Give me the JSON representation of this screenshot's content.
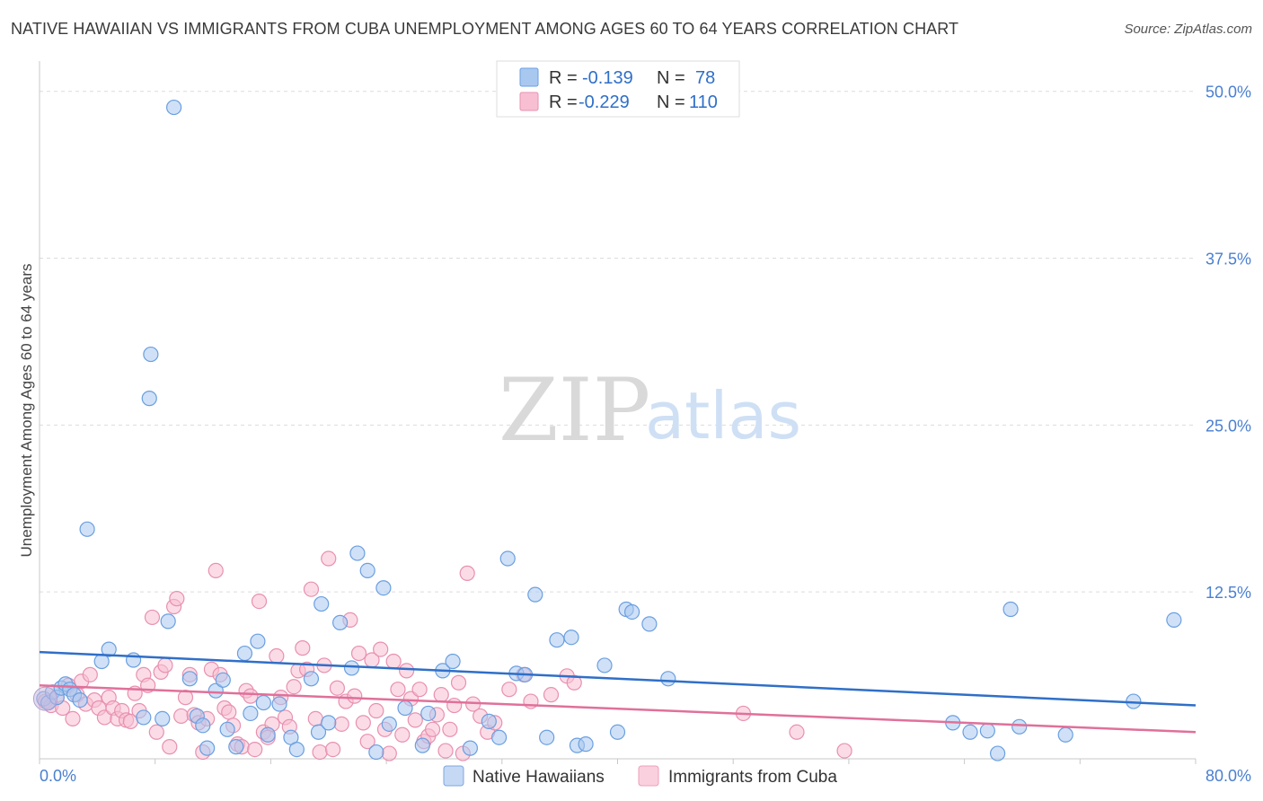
{
  "title": "NATIVE HAWAIIAN VS IMMIGRANTS FROM CUBA UNEMPLOYMENT AMONG AGES 60 TO 64 YEARS CORRELATION CHART",
  "source": "Source: ZipAtlas.com",
  "watermark": {
    "zip": "ZIP",
    "atlas": "atlas"
  },
  "legend": {
    "r_label": "R =",
    "n_label": "N =",
    "rows": [
      {
        "r": "-0.139",
        "n": "78",
        "color": "#a9c8f0",
        "stroke": "#6a9fe0"
      },
      {
        "r": "-0.229",
        "n": "110",
        "color": "#f8bfd2",
        "stroke": "#e890b0"
      }
    ]
  },
  "chart_data": {
    "type": "scatter",
    "title": "NATIVE HAWAIIAN VS IMMIGRANTS FROM CUBA UNEMPLOYMENT AMONG AGES 60 TO 64 YEARS CORRELATION CHART",
    "xlabel": "",
    "ylabel": "Unemployment Among Ages 60 to 64 years",
    "xlim": [
      0,
      80
    ],
    "ylim": [
      0,
      52
    ],
    "x_tick_labels": [
      "0.0%",
      "80.0%"
    ],
    "y_ticks": [
      12.5,
      25.0,
      37.5,
      50.0
    ],
    "y_tick_labels": [
      "12.5%",
      "25.0%",
      "37.5%",
      "50.0%"
    ],
    "grid": true,
    "series": [
      {
        "name": "Native Hawaiians",
        "color": "#a9c8f0",
        "stroke": "#6a9fe0",
        "line_color": "#2f6fc8",
        "trend": {
          "x": [
            0,
            80
          ],
          "y": [
            8.0,
            4.0
          ]
        },
        "points": [
          [
            0.3,
            4.5
          ],
          [
            0.6,
            4.2
          ],
          [
            0.9,
            5.0
          ],
          [
            1.2,
            4.6
          ],
          [
            1.5,
            5.3
          ],
          [
            1.8,
            5.6
          ],
          [
            2.1,
            5.2
          ],
          [
            2.4,
            4.8
          ],
          [
            2.8,
            4.4
          ],
          [
            3.3,
            17.2
          ],
          [
            4.3,
            7.3
          ],
          [
            4.8,
            8.2
          ],
          [
            6.5,
            7.4
          ],
          [
            7.2,
            3.1
          ],
          [
            7.6,
            27.0
          ],
          [
            7.7,
            30.3
          ],
          [
            8.5,
            3.0
          ],
          [
            8.9,
            10.3
          ],
          [
            9.3,
            48.8
          ],
          [
            10.4,
            6.0
          ],
          [
            10.9,
            3.2
          ],
          [
            11.3,
            2.5
          ],
          [
            11.6,
            0.8
          ],
          [
            12.2,
            5.1
          ],
          [
            12.7,
            5.9
          ],
          [
            13.0,
            2.2
          ],
          [
            13.6,
            0.9
          ],
          [
            14.2,
            7.9
          ],
          [
            14.6,
            3.4
          ],
          [
            15.1,
            8.8
          ],
          [
            15.5,
            4.2
          ],
          [
            15.8,
            1.8
          ],
          [
            16.6,
            4.1
          ],
          [
            17.4,
            1.6
          ],
          [
            17.8,
            0.7
          ],
          [
            18.8,
            6.0
          ],
          [
            19.3,
            2.0
          ],
          [
            19.5,
            11.6
          ],
          [
            20.0,
            2.7
          ],
          [
            20.8,
            10.2
          ],
          [
            21.6,
            6.8
          ],
          [
            22.0,
            15.4
          ],
          [
            22.7,
            14.1
          ],
          [
            23.3,
            0.5
          ],
          [
            23.8,
            12.8
          ],
          [
            24.2,
            2.6
          ],
          [
            25.3,
            3.8
          ],
          [
            26.5,
            1.0
          ],
          [
            26.9,
            3.4
          ],
          [
            27.9,
            6.6
          ],
          [
            28.6,
            7.3
          ],
          [
            29.8,
            0.8
          ],
          [
            31.1,
            2.8
          ],
          [
            31.8,
            1.6
          ],
          [
            32.4,
            15.0
          ],
          [
            33.0,
            6.4
          ],
          [
            33.6,
            6.3
          ],
          [
            34.3,
            12.3
          ],
          [
            35.1,
            1.6
          ],
          [
            35.8,
            8.9
          ],
          [
            36.8,
            9.1
          ],
          [
            37.2,
            1.0
          ],
          [
            37.8,
            1.1
          ],
          [
            39.1,
            7.0
          ],
          [
            40.0,
            2.0
          ],
          [
            40.6,
            11.2
          ],
          [
            41.0,
            11.0
          ],
          [
            42.2,
            10.1
          ],
          [
            43.5,
            6.0
          ],
          [
            63.2,
            2.7
          ],
          [
            64.4,
            2.0
          ],
          [
            65.6,
            2.1
          ],
          [
            66.3,
            0.4
          ],
          [
            67.2,
            11.2
          ],
          [
            67.8,
            2.4
          ],
          [
            71.0,
            1.8
          ],
          [
            75.7,
            4.3
          ],
          [
            78.5,
            10.4
          ]
        ]
      },
      {
        "name": "Immigrants from Cuba",
        "color": "#f8bfd2",
        "stroke": "#e890b0",
        "line_color": "#e0709a",
        "trend": {
          "x": [
            0,
            80
          ],
          "y": [
            5.5,
            2.0
          ]
        },
        "points": [
          [
            0.4,
            4.3
          ],
          [
            0.8,
            4.0
          ],
          [
            1.2,
            4.6
          ],
          [
            1.6,
            3.8
          ],
          [
            2.0,
            5.5
          ],
          [
            2.3,
            3.0
          ],
          [
            2.6,
            4.8
          ],
          [
            2.9,
            5.8
          ],
          [
            3.2,
            4.1
          ],
          [
            3.5,
            6.3
          ],
          [
            3.8,
            4.4
          ],
          [
            4.1,
            3.8
          ],
          [
            4.5,
            3.1
          ],
          [
            4.8,
            4.6
          ],
          [
            5.1,
            3.8
          ],
          [
            5.4,
            3.0
          ],
          [
            5.7,
            3.6
          ],
          [
            6.0,
            2.9
          ],
          [
            6.3,
            2.8
          ],
          [
            6.6,
            4.9
          ],
          [
            6.9,
            3.6
          ],
          [
            7.2,
            6.3
          ],
          [
            7.5,
            5.5
          ],
          [
            7.8,
            10.6
          ],
          [
            8.1,
            2.0
          ],
          [
            8.4,
            6.5
          ],
          [
            8.7,
            7.0
          ],
          [
            9.0,
            0.9
          ],
          [
            9.3,
            11.4
          ],
          [
            9.5,
            12.0
          ],
          [
            9.8,
            3.2
          ],
          [
            10.1,
            4.6
          ],
          [
            10.4,
            6.3
          ],
          [
            10.7,
            3.3
          ],
          [
            11.0,
            2.7
          ],
          [
            11.3,
            0.5
          ],
          [
            11.6,
            3.0
          ],
          [
            11.9,
            6.7
          ],
          [
            12.2,
            14.1
          ],
          [
            12.5,
            6.3
          ],
          [
            12.8,
            3.8
          ],
          [
            13.1,
            3.5
          ],
          [
            13.4,
            2.5
          ],
          [
            13.7,
            1.1
          ],
          [
            14.0,
            0.9
          ],
          [
            14.3,
            5.1
          ],
          [
            14.6,
            4.7
          ],
          [
            14.9,
            0.7
          ],
          [
            15.2,
            11.8
          ],
          [
            15.5,
            2.0
          ],
          [
            15.8,
            1.6
          ],
          [
            16.1,
            2.6
          ],
          [
            16.4,
            7.7
          ],
          [
            16.7,
            4.6
          ],
          [
            17.0,
            3.1
          ],
          [
            17.3,
            2.4
          ],
          [
            17.6,
            5.4
          ],
          [
            17.9,
            6.6
          ],
          [
            18.2,
            8.3
          ],
          [
            18.5,
            6.7
          ],
          [
            18.8,
            12.7
          ],
          [
            19.1,
            3.0
          ],
          [
            19.4,
            0.5
          ],
          [
            19.7,
            7.0
          ],
          [
            20.0,
            15.0
          ],
          [
            20.3,
            0.7
          ],
          [
            20.6,
            5.3
          ],
          [
            20.9,
            2.6
          ],
          [
            21.2,
            4.3
          ],
          [
            21.5,
            10.4
          ],
          [
            21.8,
            4.7
          ],
          [
            22.1,
            7.9
          ],
          [
            22.4,
            2.7
          ],
          [
            22.7,
            1.3
          ],
          [
            23.0,
            7.4
          ],
          [
            23.3,
            3.6
          ],
          [
            23.6,
            8.2
          ],
          [
            23.9,
            2.2
          ],
          [
            24.2,
            0.4
          ],
          [
            24.5,
            7.3
          ],
          [
            24.8,
            5.2
          ],
          [
            25.1,
            1.8
          ],
          [
            25.4,
            6.6
          ],
          [
            25.7,
            4.5
          ],
          [
            26.0,
            2.9
          ],
          [
            26.3,
            5.2
          ],
          [
            26.6,
            1.3
          ],
          [
            26.9,
            1.7
          ],
          [
            27.2,
            2.2
          ],
          [
            27.5,
            3.3
          ],
          [
            27.8,
            4.8
          ],
          [
            28.1,
            0.6
          ],
          [
            28.4,
            2.2
          ],
          [
            28.7,
            4.0
          ],
          [
            29.0,
            5.7
          ],
          [
            29.3,
            0.4
          ],
          [
            29.6,
            13.9
          ],
          [
            30.0,
            4.1
          ],
          [
            30.5,
            3.2
          ],
          [
            31.0,
            2.0
          ],
          [
            31.5,
            2.7
          ],
          [
            32.5,
            5.2
          ],
          [
            33.5,
            6.3
          ],
          [
            34.0,
            4.3
          ],
          [
            35.4,
            4.8
          ],
          [
            36.5,
            6.2
          ],
          [
            37.0,
            5.7
          ],
          [
            48.7,
            3.4
          ],
          [
            52.4,
            2.0
          ],
          [
            55.7,
            0.6
          ]
        ]
      }
    ]
  },
  "bottom_legend": [
    {
      "label": "Native Hawaiians",
      "color": "#c5d9f4",
      "stroke": "#7aa8e0"
    },
    {
      "label": "Immigrants from Cuba",
      "color": "#fbd0de",
      "stroke": "#ec9fbb"
    }
  ]
}
